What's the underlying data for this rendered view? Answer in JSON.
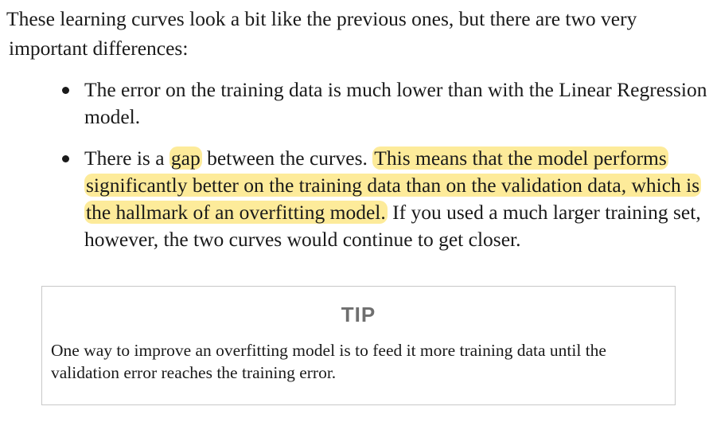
{
  "intro": {
    "line1": "These learning curves look a bit like the previous ones, but there are two very",
    "line2": "important differences:"
  },
  "points": [
    {
      "text": "The error on the training data is much lower than with the Linear Regression model."
    },
    {
      "part1": "There is a ",
      "highlight_gap": "gap",
      "part2": " between the curves. ",
      "highlight_sentence": "This means that the model performs significantly better on the training data than on the validation data, which is the hallmark of an overfitting model.",
      "part3": " If you used a much larger training set, however, the two curves would continue to get closer."
    }
  ],
  "tip": {
    "title": "TIP",
    "body": "One way to improve an overfitting model is to feed it more training data until the validation error reaches the training error."
  },
  "colors": {
    "highlight": "#fdeb9a",
    "tip_border": "#c8c8c8",
    "tip_title": "#6f6f6f"
  }
}
